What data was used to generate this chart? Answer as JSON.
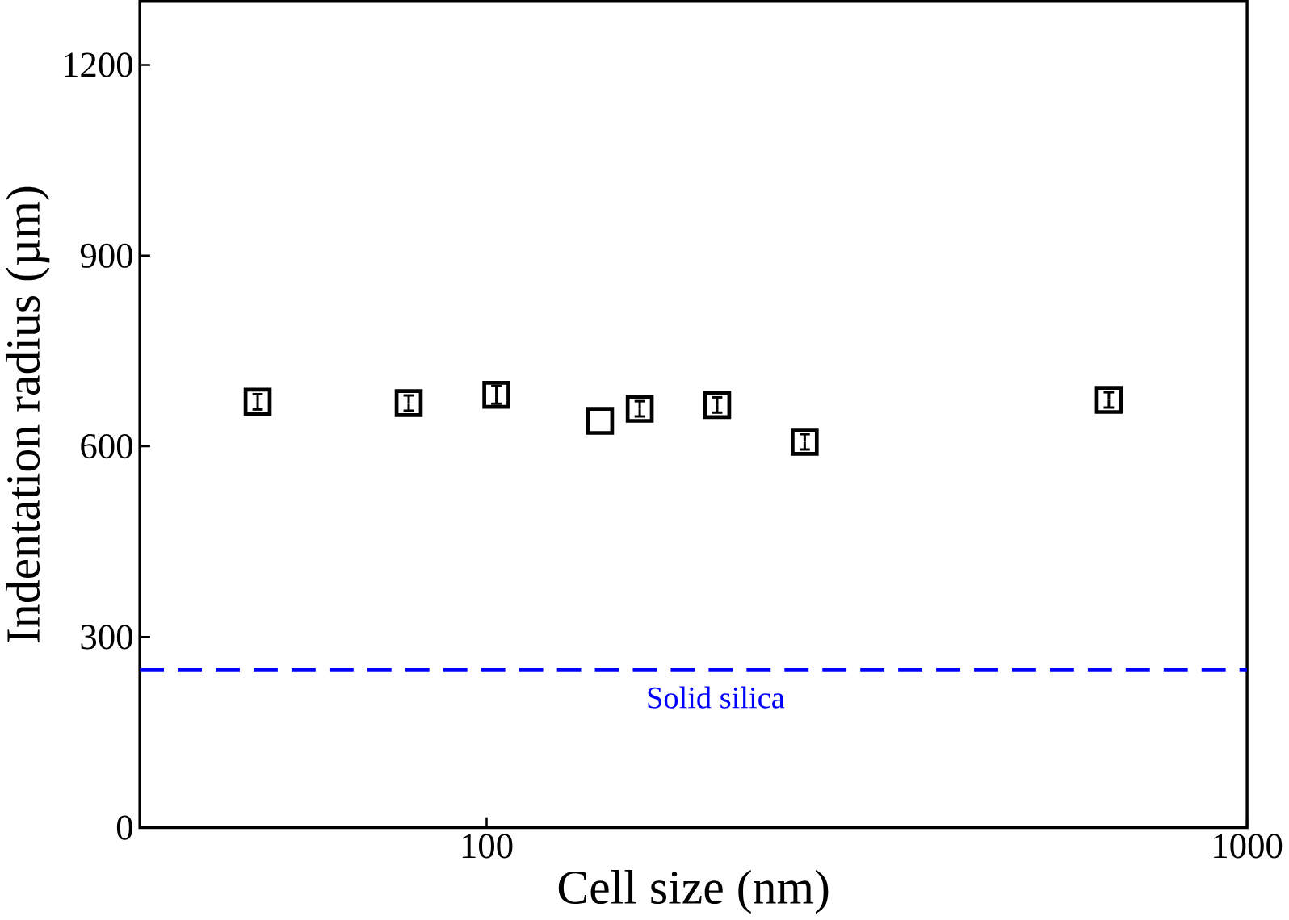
{
  "chart_data": {
    "type": "scatter",
    "xlabel": "Cell size (nm)",
    "ylabel": "Indentation radius (µm)",
    "log": "x",
    "xlim": [
      35,
      1000
    ],
    "xticks": [
      100,
      1000
    ],
    "ylim": [
      0,
      1300
    ],
    "yticks": [
      0,
      300,
      600,
      900,
      1200
    ],
    "marker": "square",
    "series": [
      {
        "color": "#000000",
        "x": [
          50,
          79,
          103,
          141,
          159,
          201,
          262,
          658
        ],
        "values": [
          670,
          668,
          681,
          640,
          659,
          665,
          607,
          673
        ],
        "errors": [
          12,
          12,
          14,
          null,
          12,
          12,
          12,
          12
        ]
      }
    ],
    "ref_lines": [
      {
        "axis": "y",
        "value": 248,
        "color": "#0000ff",
        "line_style": "dashed"
      }
    ],
    "annotations": [
      {
        "text": "Solid silica",
        "x": 200,
        "y": 248
      }
    ]
  }
}
